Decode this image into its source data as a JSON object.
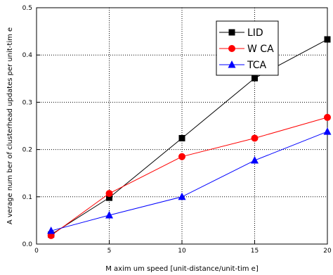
{
  "chart_data": {
    "type": "line",
    "title": "",
    "xlabel": "M axim um  speed [unit-distance/unit-tim e]",
    "ylabel": "A verage num ber of clusterhead updates per unit-tim e",
    "xlim": [
      0,
      20
    ],
    "ylim": [
      0,
      0.5
    ],
    "x_ticks": [
      "0",
      "5",
      "10",
      "15",
      "20"
    ],
    "y_ticks": [
      "0.0",
      "0.1",
      "0.2",
      "0.3",
      "0.4",
      "0.5"
    ],
    "grid": true,
    "legend_position": "top-right",
    "x": [
      1,
      5,
      10,
      15,
      20
    ],
    "series": [
      {
        "name": "LID",
        "marker": "square",
        "color": "#000000",
        "values": [
          0.02,
          0.098,
          0.224,
          0.351,
          0.433
        ]
      },
      {
        "name": "W CA",
        "marker": "circle",
        "color": "#ff0000",
        "values": [
          0.018,
          0.107,
          0.185,
          0.224,
          0.268
        ]
      },
      {
        "name": "TCA",
        "marker": "triangle",
        "color": "#0000ff",
        "values": [
          0.028,
          0.061,
          0.1,
          0.177,
          0.238
        ]
      }
    ]
  }
}
